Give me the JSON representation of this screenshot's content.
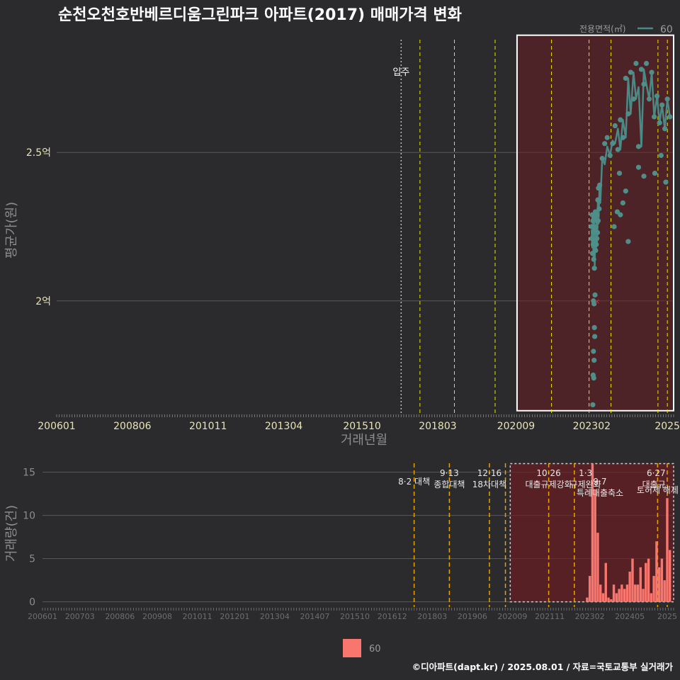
{
  "colors": {
    "background": "#2b2b2d",
    "grid": "#5a5a5a",
    "line": "#4a8a86",
    "point": "#4e8f8a",
    "bar": "#f8766d",
    "shade": "#6b1d22",
    "policy_top": "#e6e600",
    "policy_bottom": "#e6a100",
    "movein": "#bbbbbb",
    "box": "#ffffff"
  },
  "chart_data": [
    {
      "type": "line",
      "title": "순천오천호반베르디움그린파크 아파트(2017) 매매가격 변화",
      "xlabel": "거래년월",
      "ylabel": "평균가(원)",
      "legend": {
        "title": "전용면적(㎡)",
        "labels": [
          "60"
        ],
        "position": "top-right"
      },
      "x_range": [
        2006.0,
        2025.7
      ],
      "y_range": [
        16200,
        28800
      ],
      "x_ticks": [
        {
          "label": "200601",
          "value": 2006.0
        },
        {
          "label": "200806",
          "value": 2008.417
        },
        {
          "label": "201011",
          "value": 2010.833
        },
        {
          "label": "201304",
          "value": 2013.25
        },
        {
          "label": "201510",
          "value": 2015.75
        },
        {
          "label": "201803",
          "value": 2018.167
        },
        {
          "label": "202009",
          "value": 2020.667
        },
        {
          "label": "202302",
          "value": 2023.083
        },
        {
          "label": "2025",
          "value": 2025.5
        }
      ],
      "y_ticks": [
        {
          "label": "2억",
          "value": 20000
        },
        {
          "label": "2.5억",
          "value": 25000
        }
      ],
      "move_in": {
        "label": "입주",
        "x": 2017.0
      },
      "policy_lines_x": [
        2017.6,
        2018.7,
        2020.0,
        2021.8,
        2023.0,
        2023.7,
        2025.2,
        2025.5
      ],
      "highlight_range_x": [
        2020.7,
        2025.7
      ],
      "highlight_range_y": [
        16300,
        28950
      ],
      "highlight_value": {
        "x": 2023.25,
        "y": 20000
      },
      "series": [
        {
          "name": "60",
          "line": [
            [
              2023.08,
              22400
            ],
            [
              2023.1,
              21800
            ],
            [
              2023.12,
              22600
            ],
            [
              2023.14,
              21500
            ],
            [
              2023.16,
              22900
            ],
            [
              2023.18,
              21200
            ],
            [
              2023.2,
              22300
            ],
            [
              2023.22,
              21700
            ],
            [
              2023.24,
              22800
            ],
            [
              2023.26,
              22000
            ],
            [
              2023.28,
              23300
            ],
            [
              2023.3,
              22600
            ],
            [
              2023.33,
              23700
            ],
            [
              2023.36,
              23300
            ],
            [
              2023.42,
              24800
            ],
            [
              2023.5,
              24600
            ],
            [
              2023.58,
              25200
            ],
            [
              2023.67,
              24900
            ],
            [
              2023.75,
              25400
            ],
            [
              2023.83,
              25300
            ],
            [
              2023.92,
              25800
            ],
            [
              2024.0,
              25100
            ],
            [
              2024.08,
              26100
            ],
            [
              2024.17,
              25500
            ],
            [
              2024.25,
              27500
            ],
            [
              2024.33,
              26300
            ],
            [
              2024.42,
              27700
            ],
            [
              2024.5,
              26800
            ],
            [
              2024.58,
              27200
            ],
            [
              2024.67,
              25200
            ],
            [
              2024.75,
              27800
            ],
            [
              2024.83,
              27300
            ],
            [
              2024.92,
              26800
            ],
            [
              2025.0,
              27700
            ],
            [
              2025.08,
              26200
            ],
            [
              2025.17,
              26900
            ],
            [
              2025.25,
              26000
            ],
            [
              2025.33,
              26600
            ],
            [
              2025.42,
              25800
            ],
            [
              2025.5,
              26800
            ],
            [
              2025.58,
              26200
            ]
          ],
          "points": [
            [
              2023.08,
              22500
            ],
            [
              2023.09,
              22100
            ],
            [
              2023.1,
              22900
            ],
            [
              2023.11,
              21600
            ],
            [
              2023.12,
              22700
            ],
            [
              2023.13,
              21900
            ],
            [
              2023.14,
              22300
            ],
            [
              2023.15,
              21400
            ],
            [
              2023.16,
              22800
            ],
            [
              2023.17,
              21100
            ],
            [
              2023.18,
              22400
            ],
            [
              2023.19,
              22000
            ],
            [
              2023.2,
              23000
            ],
            [
              2023.21,
              21700
            ],
            [
              2023.22,
              22500
            ],
            [
              2023.23,
              21900
            ],
            [
              2023.24,
              22700
            ],
            [
              2023.25,
              22100
            ],
            [
              2023.26,
              22900
            ],
            [
              2023.27,
              22300
            ],
            [
              2023.28,
              23400
            ],
            [
              2023.29,
              22700
            ],
            [
              2023.3,
              23800
            ],
            [
              2023.32,
              23100
            ],
            [
              2023.34,
              23900
            ],
            [
              2023.14,
              20000
            ],
            [
              2023.16,
              19900
            ],
            [
              2023.17,
              19100
            ],
            [
              2023.18,
              18800
            ],
            [
              2023.14,
              18300
            ],
            [
              2023.16,
              18000
            ],
            [
              2023.13,
              17500
            ],
            [
              2023.15,
              17400
            ],
            [
              2023.12,
              16500
            ],
            [
              2023.19,
              20200
            ],
            [
              2023.42,
              24800
            ],
            [
              2023.5,
              25300
            ],
            [
              2023.58,
              25500
            ],
            [
              2023.67,
              24900
            ],
            [
              2023.75,
              25300
            ],
            [
              2023.83,
              25900
            ],
            [
              2023.92,
              25100
            ],
            [
              2024.0,
              26100
            ],
            [
              2024.08,
              25500
            ],
            [
              2024.17,
              27500
            ],
            [
              2024.25,
              26300
            ],
            [
              2024.33,
              27700
            ],
            [
              2024.42,
              26800
            ],
            [
              2024.5,
              28000
            ],
            [
              2024.58,
              25200
            ],
            [
              2024.67,
              27800
            ],
            [
              2024.75,
              27300
            ],
            [
              2024.83,
              28000
            ],
            [
              2024.92,
              26800
            ],
            [
              2025.0,
              27700
            ],
            [
              2025.08,
              26200
            ],
            [
              2025.17,
              26900
            ],
            [
              2025.25,
              26000
            ],
            [
              2025.33,
              26600
            ],
            [
              2025.42,
              25800
            ],
            [
              2025.5,
              26800
            ],
            [
              2025.58,
              26200
            ],
            [
              2023.9,
              23000
            ],
            [
              2024.0,
              22900
            ],
            [
              2024.08,
              23300
            ],
            [
              2024.17,
              23700
            ],
            [
              2023.8,
              22500
            ],
            [
              2024.25,
              22000
            ],
            [
              2024.58,
              24500
            ],
            [
              2025.1,
              24300
            ],
            [
              2025.3,
              24900
            ],
            [
              2025.45,
              24000
            ],
            [
              2023.97,
              24300
            ],
            [
              2024.75,
              24200
            ]
          ]
        }
      ]
    },
    {
      "type": "bar",
      "xlabel": "",
      "ylabel": "거래량(건)",
      "x_range": [
        2006.0,
        2025.7
      ],
      "y_range": [
        -0.6,
        16.2
      ],
      "y_ticks": [
        {
          "label": "0",
          "value": 0
        },
        {
          "label": "5",
          "value": 5
        },
        {
          "label": "10",
          "value": 10
        },
        {
          "label": "15",
          "value": 15
        }
      ],
      "x_ticks": [
        {
          "label": "200601",
          "value": 2006.0
        },
        {
          "label": "200703",
          "value": 2007.167
        },
        {
          "label": "200806",
          "value": 2008.417
        },
        {
          "label": "200908",
          "value": 2009.583
        },
        {
          "label": "201011",
          "value": 2010.833
        },
        {
          "label": "201201",
          "value": 2012.0
        },
        {
          "label": "201304",
          "value": 2013.25
        },
        {
          "label": "201407",
          "value": 2014.5
        },
        {
          "label": "201510",
          "value": 2015.75
        },
        {
          "label": "201612",
          "value": 2016.917
        },
        {
          "label": "201803",
          "value": 2018.167
        },
        {
          "label": "201906",
          "value": 2019.417
        },
        {
          "label": "202009",
          "value": 2020.667
        },
        {
          "label": "202111",
          "value": 2021.833
        },
        {
          "label": "202302",
          "value": 2023.083
        },
        {
          "label": "202405",
          "value": 2024.333
        },
        {
          "label": "2025",
          "value": 2025.5
        }
      ],
      "policy_lines_x": [
        2017.6,
        2018.7,
        2019.95,
        2020.45,
        2021.8,
        2022.6,
        2025.2,
        2025.5
      ],
      "highlight_range_x": [
        2020.6,
        2025.7
      ],
      "highlight_range_y": [
        0,
        16
      ],
      "annotations": [
        {
          "x": 2017.6,
          "lines": [
            "8·2 대책"
          ],
          "row": 1
        },
        {
          "x": 2018.7,
          "lines": [
            "9·13",
            "종합대책"
          ],
          "row": 0
        },
        {
          "x": 2019.95,
          "lines": [
            "12·16",
            "18차대책"
          ],
          "row": 0
        },
        {
          "x": 2021.8,
          "lines": [
            "10·26",
            "대출규제강화"
          ],
          "row": 0
        },
        {
          "x": 2022.95,
          "lines": [
            "1·3",
            "규제완화"
          ],
          "row": 0
        },
        {
          "x": 2023.4,
          "lines": [
            "9·7",
            "특례대출축소"
          ],
          "row": 1
        },
        {
          "x": 2025.45,
          "lines": [
            "6·27",
            "대출규"
          ],
          "row": 0
        },
        {
          "x": 2025.2,
          "lines": [
            "토허제 해제"
          ],
          "row": 2
        }
      ],
      "legend": {
        "labels": [
          "60"
        ],
        "position": "bottom"
      },
      "series": [
        {
          "name": "60",
          "bars": [
            [
              2023.0,
              0.5
            ],
            [
              2023.083,
              3
            ],
            [
              2023.167,
              16
            ],
            [
              2023.25,
              13
            ],
            [
              2023.333,
              8
            ],
            [
              2023.417,
              2
            ],
            [
              2023.5,
              1
            ],
            [
              2023.583,
              4.5
            ],
            [
              2023.667,
              0.5
            ],
            [
              2023.75,
              0.3
            ],
            [
              2023.833,
              2
            ],
            [
              2023.917,
              1
            ],
            [
              2024.0,
              1.5
            ],
            [
              2024.083,
              2
            ],
            [
              2024.167,
              1.5
            ],
            [
              2024.25,
              2
            ],
            [
              2024.333,
              3.5
            ],
            [
              2024.417,
              5
            ],
            [
              2024.5,
              2
            ],
            [
              2024.583,
              2
            ],
            [
              2024.667,
              4
            ],
            [
              2024.75,
              1.5
            ],
            [
              2024.833,
              4.5
            ],
            [
              2024.917,
              5
            ],
            [
              2025.0,
              1
            ],
            [
              2025.083,
              3
            ],
            [
              2025.167,
              7
            ],
            [
              2025.25,
              4
            ],
            [
              2025.333,
              5
            ],
            [
              2025.417,
              2.5
            ],
            [
              2025.5,
              12
            ],
            [
              2025.583,
              6
            ]
          ]
        }
      ]
    }
  ],
  "footer": "©디아파트(dapt.kr) / 2025.08.01 / 자료=국토교통부 실거래가"
}
